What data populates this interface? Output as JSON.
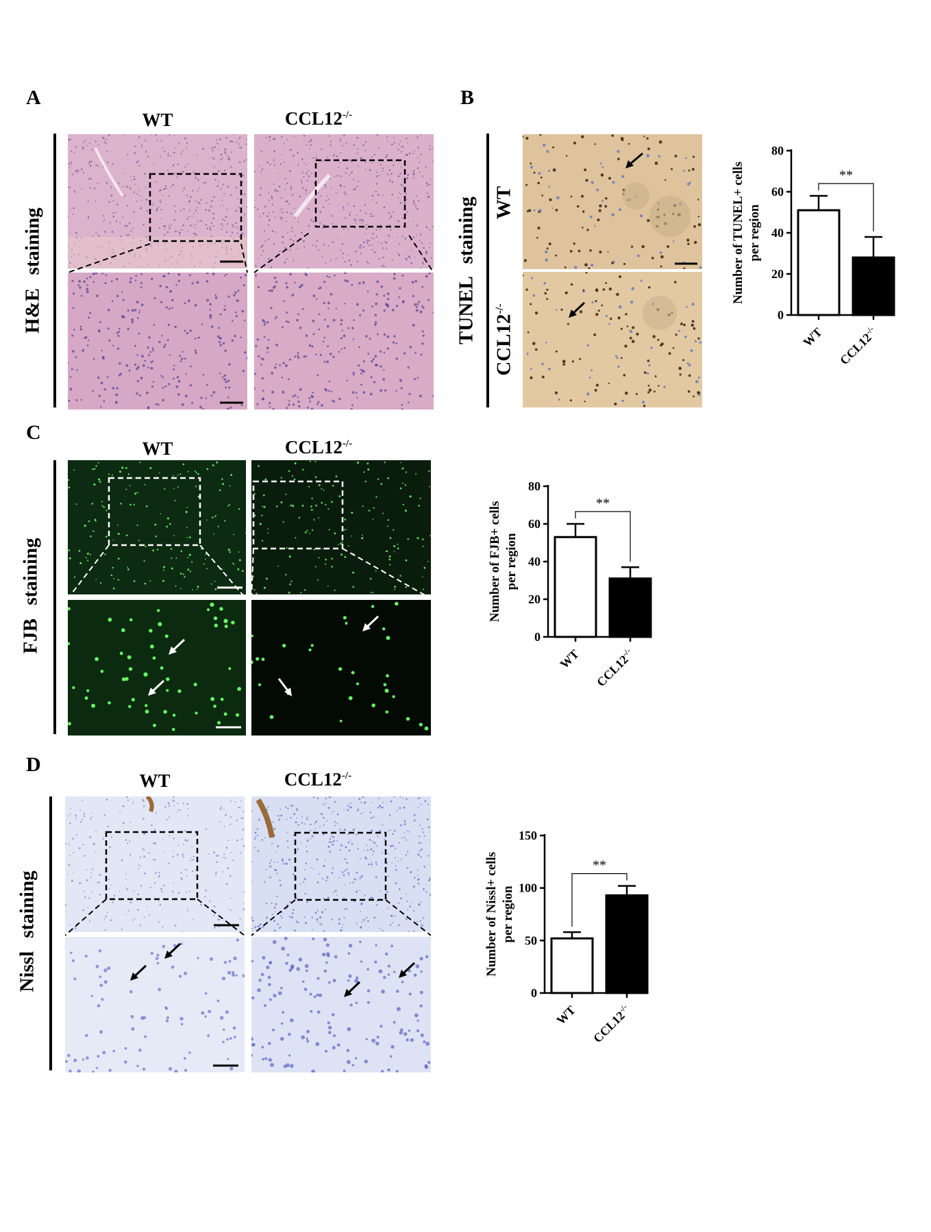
{
  "panels": {
    "A": {
      "letter": "A",
      "row_label": "H&E  staining",
      "col1": "WT",
      "col2_base": "CCL12",
      "col2_sup": "-/-"
    },
    "B": {
      "letter": "B",
      "row_label": "TUNEL  staining",
      "row1": "WT",
      "row2_base": "CCL12",
      "row2_sup": "-/-"
    },
    "C": {
      "letter": "C",
      "row_label": "FJB  staining",
      "col1": "WT",
      "col2_base": "CCL12",
      "col2_sup": "-/-"
    },
    "D": {
      "letter": "D",
      "row_label": "Nissl  staining",
      "col1": "WT",
      "col2_base": "CCL12",
      "col2_sup": "-/-"
    }
  },
  "colors": {
    "he_bg": "#d9aec9",
    "tunel_bg": "#e3c79f",
    "fjb_bg": "#0c2410",
    "fjb_dot": "#6cff6c",
    "nissl_bg": "#dfe4f4",
    "nissl_cell": "#6a74c8"
  },
  "chart_data": [
    {
      "id": "B",
      "type": "bar",
      "ylabel_line1": "Number of TUNEL+ cells",
      "ylabel_line2": "per region",
      "categories": [
        "WT",
        "CCL12-/-"
      ],
      "category_base": [
        "WT",
        "CCL12"
      ],
      "category_sup": [
        "",
        "-/-"
      ],
      "values": [
        51,
        28
      ],
      "errors": [
        7,
        10
      ],
      "fills": [
        "#ffffff",
        "#000000"
      ],
      "ylim": [
        0,
        80
      ],
      "yticks": [
        "0",
        "20",
        "40",
        "60",
        "80"
      ],
      "significance": "**"
    },
    {
      "id": "C",
      "type": "bar",
      "ylabel_line1": "Number of  FJB+ cells",
      "ylabel_line2": "per region",
      "categories": [
        "WT",
        "CCL12-/-"
      ],
      "category_base": [
        "WT",
        "CCL12"
      ],
      "category_sup": [
        "",
        "-/-"
      ],
      "values": [
        53,
        31
      ],
      "errors": [
        7,
        6
      ],
      "fills": [
        "#ffffff",
        "#000000"
      ],
      "ylim": [
        0,
        80
      ],
      "yticks": [
        "0",
        "20",
        "40",
        "60",
        "80"
      ],
      "significance": "**"
    },
    {
      "id": "D",
      "type": "bar",
      "ylabel_line1": "Number of Nissl+ cells",
      "ylabel_line2": "per region",
      "categories": [
        "WT",
        "CCL12-/-"
      ],
      "category_base": [
        "WT",
        "CCL12"
      ],
      "category_sup": [
        "",
        "-/-"
      ],
      "values": [
        52,
        93
      ],
      "errors": [
        6,
        9
      ],
      "fills": [
        "#ffffff",
        "#000000"
      ],
      "ylim": [
        0,
        150
      ],
      "yticks": [
        "0",
        "50",
        "100",
        "150"
      ],
      "significance": "**"
    }
  ]
}
